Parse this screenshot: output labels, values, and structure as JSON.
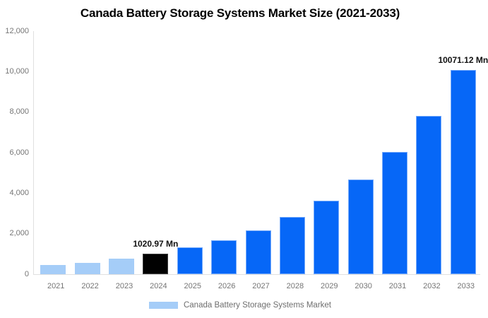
{
  "chart_data": {
    "type": "bar",
    "title": "Canada Battery Storage Systems Market Size (2021-2033)",
    "categories": [
      "2021",
      "2022",
      "2023",
      "2024",
      "2025",
      "2026",
      "2027",
      "2028",
      "2029",
      "2030",
      "2031",
      "2032",
      "2033"
    ],
    "series": [
      {
        "name": "Canada Battery Storage Systems Market",
        "values": [
          455,
          570,
          760,
          1020.97,
          1310,
          1690,
          2180,
          2810,
          3630,
          4680,
          6040,
          7800,
          10071.12
        ]
      }
    ],
    "unit": "Mn",
    "xlabel": "",
    "ylabel": "",
    "ylim": [
      0,
      12000
    ],
    "ytick_step": 2000,
    "ytick_labels": [
      "0",
      "2,000",
      "4,000",
      "6,000",
      "8,000",
      "10,000",
      "12,000"
    ],
    "grid": false,
    "legend_position": "bottom",
    "bar_color_roles": [
      "historical",
      "historical",
      "historical",
      "highlight",
      "forecast",
      "forecast",
      "forecast",
      "forecast",
      "forecast",
      "forecast",
      "forecast",
      "forecast",
      "forecast"
    ],
    "annotations": [
      {
        "category": "2024",
        "text": "1020.97 Mn"
      },
      {
        "category": "2033",
        "text": "10071.12 Mn"
      }
    ]
  },
  "legend": {
    "label": "Canada Battery Storage Systems Market"
  },
  "colors": {
    "background": "#ffffff",
    "title_text": "#000000",
    "axis_line": "#e0e0e0",
    "tick_text": "#757575",
    "annotation_text": "#111111",
    "legend_text": "#6e6e6e",
    "bar_historical": "#a5cdf8",
    "bar_highlight": "#010101",
    "bar_highlight_border": "#404040",
    "bar_forecast": "#0667f7",
    "legend_swatch": "#a5cdf8"
  }
}
